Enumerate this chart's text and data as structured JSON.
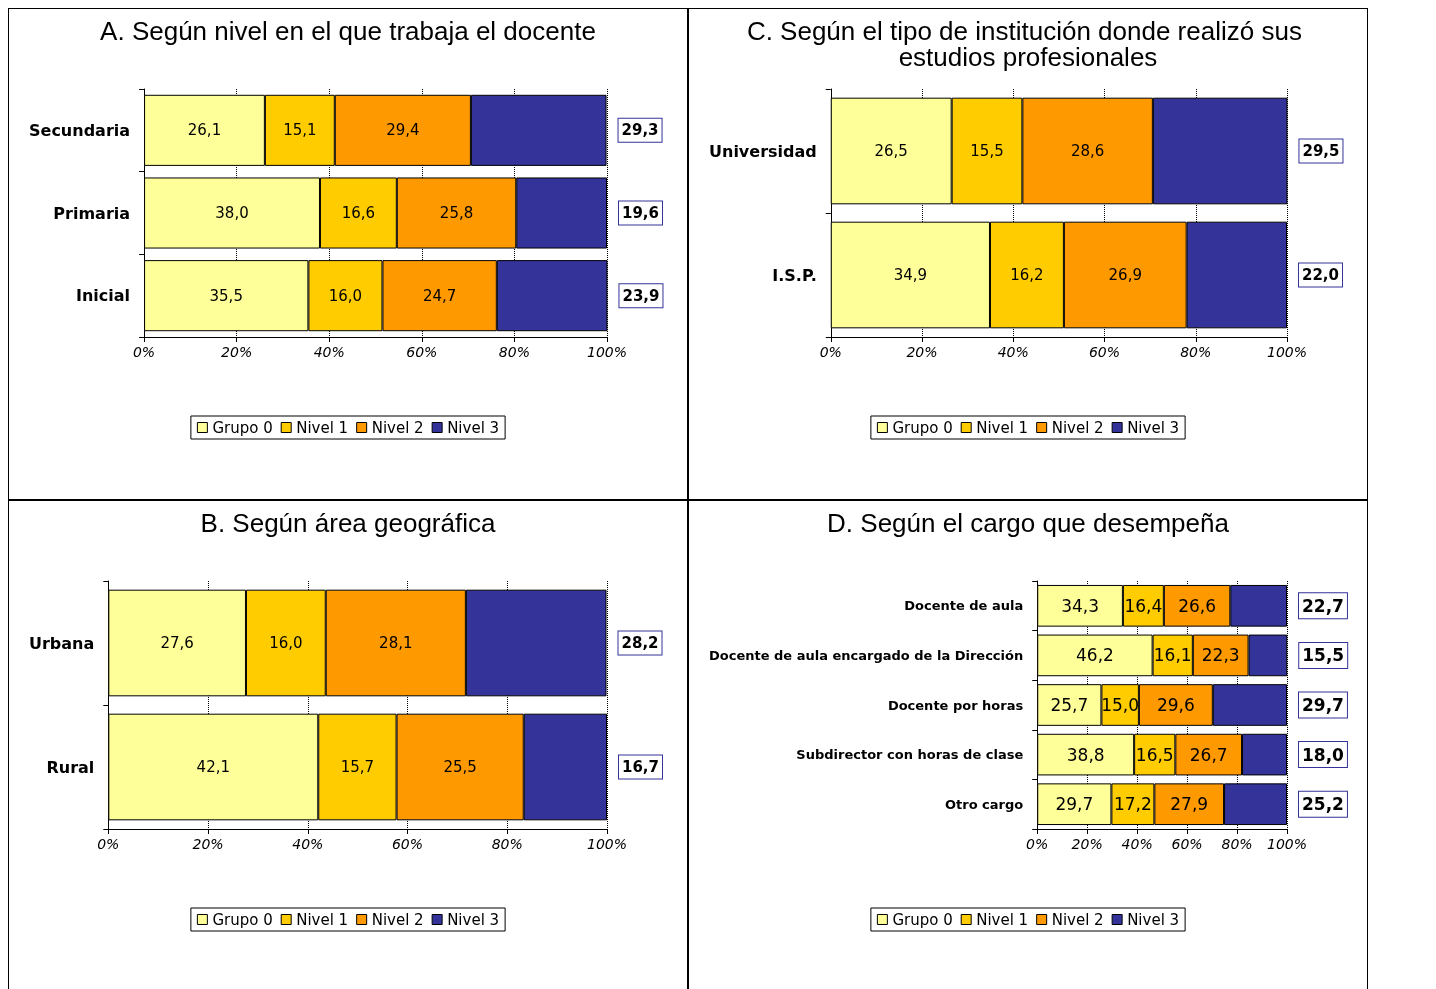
{
  "chart_data": [
    {
      "type": "bar",
      "orientation": "horizontal",
      "stacked": true,
      "title": "A. Según nivel en el que trabaja el docente",
      "categories": [
        "Secundaria",
        "Primaria",
        "Inicial"
      ],
      "series": [
        {
          "name": "Grupo 0",
          "color": "#ffff99",
          "values": [
            26.1,
            38.0,
            35.5
          ],
          "value_labels": [
            "26,1",
            "38,0",
            "35,5"
          ]
        },
        {
          "name": "Nivel 1",
          "color": "#ffcc00",
          "values": [
            15.1,
            16.6,
            16.0
          ],
          "value_labels": [
            "15,1",
            "16,6",
            "16,0"
          ]
        },
        {
          "name": "Nivel 2",
          "color": "#ff9900",
          "values": [
            29.4,
            25.8,
            24.7
          ],
          "value_labels": [
            "29,4",
            "25,8",
            "24,7"
          ]
        },
        {
          "name": "Nivel 3",
          "color": "#333399",
          "values": [
            29.3,
            19.6,
            23.9
          ],
          "value_labels": [
            "29,3",
            "19,6",
            "23,9"
          ]
        }
      ],
      "xlim": [
        0,
        100
      ],
      "xticks": [
        {
          "value": 0,
          "label": "0%"
        },
        {
          "value": 20,
          "label": "20%"
        },
        {
          "value": 40,
          "label": "40%"
        },
        {
          "value": 60,
          "label": "60%"
        },
        {
          "value": 80,
          "label": "80%"
        },
        {
          "value": 100,
          "label": "100%"
        }
      ],
      "grid": "x",
      "legend": "bottom"
    },
    {
      "type": "bar",
      "orientation": "horizontal",
      "stacked": true,
      "title": "C. Según el tipo de institución donde realizó sus estudios profesionales",
      "categories": [
        "Universidad",
        "I.S.P."
      ],
      "series": [
        {
          "name": "Grupo 0",
          "color": "#ffff99",
          "values": [
            26.5,
            34.9
          ],
          "value_labels": [
            "26,5",
            "34,9"
          ]
        },
        {
          "name": "Nivel 1",
          "color": "#ffcc00",
          "values": [
            15.5,
            16.2
          ],
          "value_labels": [
            "15,5",
            "16,2"
          ]
        },
        {
          "name": "Nivel 2",
          "color": "#ff9900",
          "values": [
            28.6,
            26.9
          ],
          "value_labels": [
            "28,6",
            "26,9"
          ]
        },
        {
          "name": "Nivel 3",
          "color": "#333399",
          "values": [
            29.5,
            22.0
          ],
          "value_labels": [
            "29,5",
            "22,0"
          ]
        }
      ],
      "xlim": [
        0,
        100
      ],
      "xticks": [
        {
          "value": 0,
          "label": "0%"
        },
        {
          "value": 20,
          "label": "20%"
        },
        {
          "value": 40,
          "label": "40%"
        },
        {
          "value": 60,
          "label": "60%"
        },
        {
          "value": 80,
          "label": "80%"
        },
        {
          "value": 100,
          "label": "100%"
        }
      ],
      "grid": "x",
      "legend": "bottom"
    },
    {
      "type": "bar",
      "orientation": "horizontal",
      "stacked": true,
      "title": "B. Según área geográfica",
      "categories": [
        "Urbana",
        "Rural"
      ],
      "series": [
        {
          "name": "Grupo 0",
          "color": "#ffff99",
          "values": [
            27.6,
            42.1
          ],
          "value_labels": [
            "27,6",
            "42,1"
          ]
        },
        {
          "name": "Nivel 1",
          "color": "#ffcc00",
          "values": [
            16.0,
            15.7
          ],
          "value_labels": [
            "16,0",
            "15,7"
          ]
        },
        {
          "name": "Nivel 2",
          "color": "#ff9900",
          "values": [
            28.1,
            25.5
          ],
          "value_labels": [
            "28,1",
            "25,5"
          ]
        },
        {
          "name": "Nivel 3",
          "color": "#333399",
          "values": [
            28.2,
            16.7
          ],
          "value_labels": [
            "28,2",
            "16,7"
          ]
        }
      ],
      "xlim": [
        0,
        100
      ],
      "xticks": [
        {
          "value": 0,
          "label": "0%"
        },
        {
          "value": 20,
          "label": "20%"
        },
        {
          "value": 40,
          "label": "40%"
        },
        {
          "value": 60,
          "label": "60%"
        },
        {
          "value": 80,
          "label": "80%"
        },
        {
          "value": 100,
          "label": "100%"
        }
      ],
      "grid": "x",
      "legend": "bottom"
    },
    {
      "type": "bar",
      "orientation": "horizontal",
      "stacked": true,
      "title": "D. Según el cargo que desempeña",
      "categories": [
        "Docente de aula",
        "Docente de aula encargado de la Dirección",
        "Docente por horas",
        "Subdirector con horas de clase",
        "Otro cargo"
      ],
      "series": [
        {
          "name": "Grupo 0",
          "color": "#ffff99",
          "values": [
            34.3,
            46.2,
            25.7,
            38.8,
            29.7
          ],
          "value_labels": [
            "34,3",
            "46,2",
            "25,7",
            "38,8",
            "29,7"
          ]
        },
        {
          "name": "Nivel 1",
          "color": "#ffcc00",
          "values": [
            16.4,
            16.1,
            15.0,
            16.5,
            17.2
          ],
          "value_labels": [
            "16,4",
            "16,1",
            "15,0",
            "16,5",
            "17,2"
          ]
        },
        {
          "name": "Nivel 2",
          "color": "#ff9900",
          "values": [
            26.6,
            22.3,
            29.6,
            26.7,
            27.9
          ],
          "value_labels": [
            "26,6",
            "22,3",
            "29,6",
            "26,7",
            "27,9"
          ]
        },
        {
          "name": "Nivel 3",
          "color": "#333399",
          "values": [
            22.7,
            15.5,
            29.7,
            18.0,
            25.2
          ],
          "value_labels": [
            "22,7",
            "15,5",
            "29,7",
            "18,0",
            "25,2"
          ]
        }
      ],
      "xlim": [
        0,
        100
      ],
      "xticks": [
        {
          "value": 0,
          "label": "0%"
        },
        {
          "value": 20,
          "label": "20%"
        },
        {
          "value": 40,
          "label": "40%"
        },
        {
          "value": 60,
          "label": "60%"
        },
        {
          "value": 80,
          "label": "80%"
        },
        {
          "value": 100,
          "label": "100%"
        }
      ],
      "grid": "x",
      "legend": "bottom"
    }
  ]
}
